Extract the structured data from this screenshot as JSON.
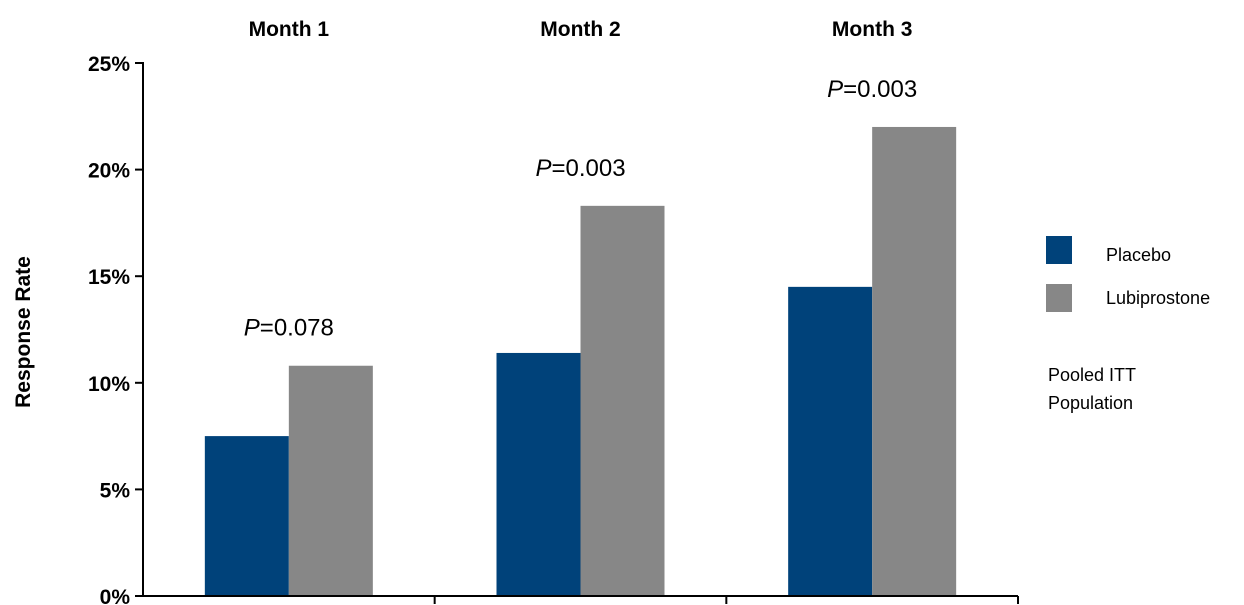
{
  "chart_data": {
    "type": "bar",
    "categories": [
      "Month 1",
      "Month 2",
      "Month 3"
    ],
    "series": [
      {
        "name": "Placebo",
        "values": [
          7.5,
          11.4,
          14.5
        ]
      },
      {
        "name": "Lubiprostone",
        "values": [
          10.8,
          18.3,
          22.0
        ]
      }
    ],
    "ylabel": "Response Rate",
    "ylim": [
      0,
      25
    ],
    "ytick_labels": [
      "0%",
      "5%",
      "10%",
      "15%",
      "20%",
      "25%"
    ],
    "yticks": [
      0,
      5,
      10,
      15,
      20,
      25
    ],
    "annotations": [
      {
        "category": "Month 1",
        "prefix": "P",
        "text": "=0.078"
      },
      {
        "category": "Month 2",
        "prefix": "P",
        "text": "=0.003"
      },
      {
        "category": "Month 3",
        "prefix": "P",
        "text": "=0.003"
      }
    ],
    "note_lines": [
      "Pooled ITT",
      "Population"
    ],
    "grid": false,
    "legend_position": "right"
  },
  "colors": {
    "placebo": "#00427A",
    "lubiprostone": "#878787",
    "axis": "#000000"
  }
}
